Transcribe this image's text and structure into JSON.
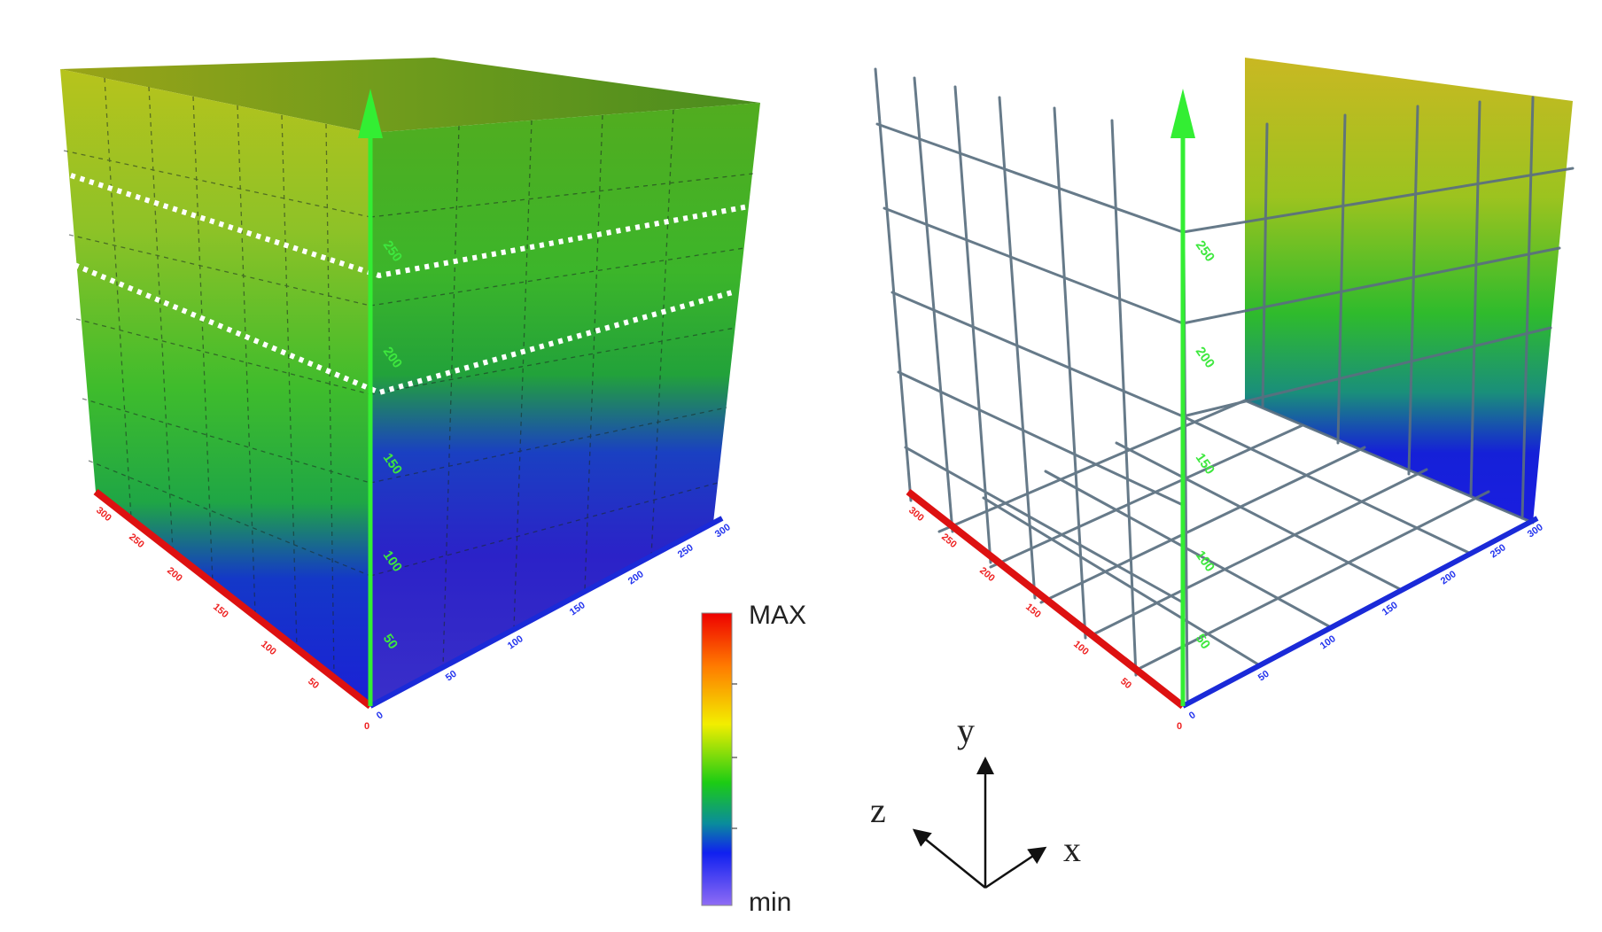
{
  "colorbar": {
    "max_label": "MAX",
    "min_label": "min",
    "colors": [
      "#ff0000",
      "#ff8800",
      "#ffee00",
      "#22cc00",
      "#1122ee",
      "#8866ff"
    ]
  },
  "axes_legend": {
    "x_label": "x",
    "y_label": "y",
    "z_label": "z"
  },
  "left_cube": {
    "y_ticks": [
      "250",
      "200",
      "150",
      "100",
      "50"
    ],
    "x_ticks": [
      "0",
      "50",
      "100",
      "150",
      "200",
      "250",
      "300"
    ],
    "z_ticks": [
      "0",
      "50",
      "100",
      "150",
      "200",
      "250",
      "300"
    ]
  },
  "right_cube": {
    "y_ticks": [
      "250",
      "200",
      "150",
      "100",
      "50"
    ],
    "x_ticks": [
      "0",
      "50",
      "100",
      "150",
      "200",
      "250",
      "300"
    ],
    "z_ticks": [
      "0",
      "50",
      "100",
      "150",
      "200",
      "250",
      "300"
    ]
  },
  "colors": {
    "y_axis": "#33ee33",
    "x_axis": "#1a2ad8",
    "z_axis": "#dd1111",
    "grid": "#5a6f80",
    "dotted_lines": "#ffffff"
  }
}
